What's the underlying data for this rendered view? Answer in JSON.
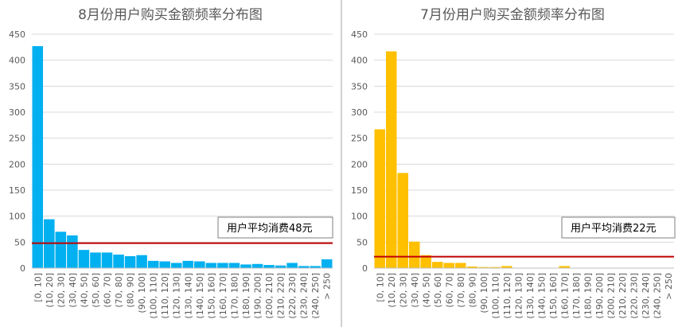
{
  "chart_data": [
    {
      "type": "bar",
      "title": "8月份用户购买金额频率分布图",
      "color": "#00B0F0",
      "ylim": [
        0,
        450
      ],
      "yticks": [
        0,
        50,
        100,
        150,
        200,
        250,
        300,
        350,
        400,
        450
      ],
      "grid": true,
      "categories": [
        "[0, 10]",
        "(10, 20]",
        "(20, 30]",
        "(30, 40]",
        "(40, 50]",
        "(50, 60]",
        "(60, 70]",
        "(70, 80]",
        "(80, 90]",
        "(90, 100]",
        "(100, 110]",
        "(110, 120]",
        "(120, 130]",
        "(130, 140]",
        "(140, 150]",
        "(150, 160]",
        "(160, 170]",
        "(170, 180]",
        "(180, 190]",
        "(190, 200]",
        "(200, 210]",
        "(210, 220]",
        "(220, 230]",
        "(230, 240]",
        "(240, 250]",
        "> 250"
      ],
      "values": [
        427,
        94,
        70,
        63,
        35,
        30,
        30,
        26,
        23,
        25,
        14,
        13,
        10,
        14,
        13,
        10,
        10,
        10,
        7,
        8,
        6,
        5,
        10,
        4,
        4,
        17
      ],
      "average_line": {
        "value": 48,
        "color": "#C00000"
      },
      "annotation": "用户平均消费48元"
    },
    {
      "type": "bar",
      "title": "7月份用户购买金额频率分布图",
      "color": "#FFC000",
      "ylim": [
        0,
        450
      ],
      "yticks": [
        0,
        50,
        100,
        150,
        200,
        250,
        300,
        350,
        400,
        450
      ],
      "grid": true,
      "categories": [
        "[0, 10]",
        "(10, 20]",
        "(20, 30]",
        "(30, 40]",
        "(40, 50]",
        "(50, 60]",
        "(60, 70]",
        "(70, 80]",
        "(80, 90]",
        "(90, 100]",
        "(100, 110]",
        "(110, 120]",
        "(120, 130]",
        "(130, 140]",
        "(140, 150]",
        "(150, 160]",
        "(160, 170]",
        "(170, 180]",
        "(180, 190]",
        "(190, 200]",
        "(200, 210]",
        "(210, 220]",
        "(220, 230]",
        "(230, 240]",
        "(240, 250]",
        "> 250"
      ],
      "values": [
        267,
        417,
        183,
        51,
        25,
        12,
        10,
        10,
        3,
        2,
        2,
        4,
        0,
        0,
        0,
        0,
        4,
        0,
        0,
        0,
        0,
        0,
        0,
        0,
        0,
        0
      ],
      "average_line": {
        "value": 22,
        "color": "#C00000"
      },
      "annotation": "用户平均消费22元"
    }
  ]
}
